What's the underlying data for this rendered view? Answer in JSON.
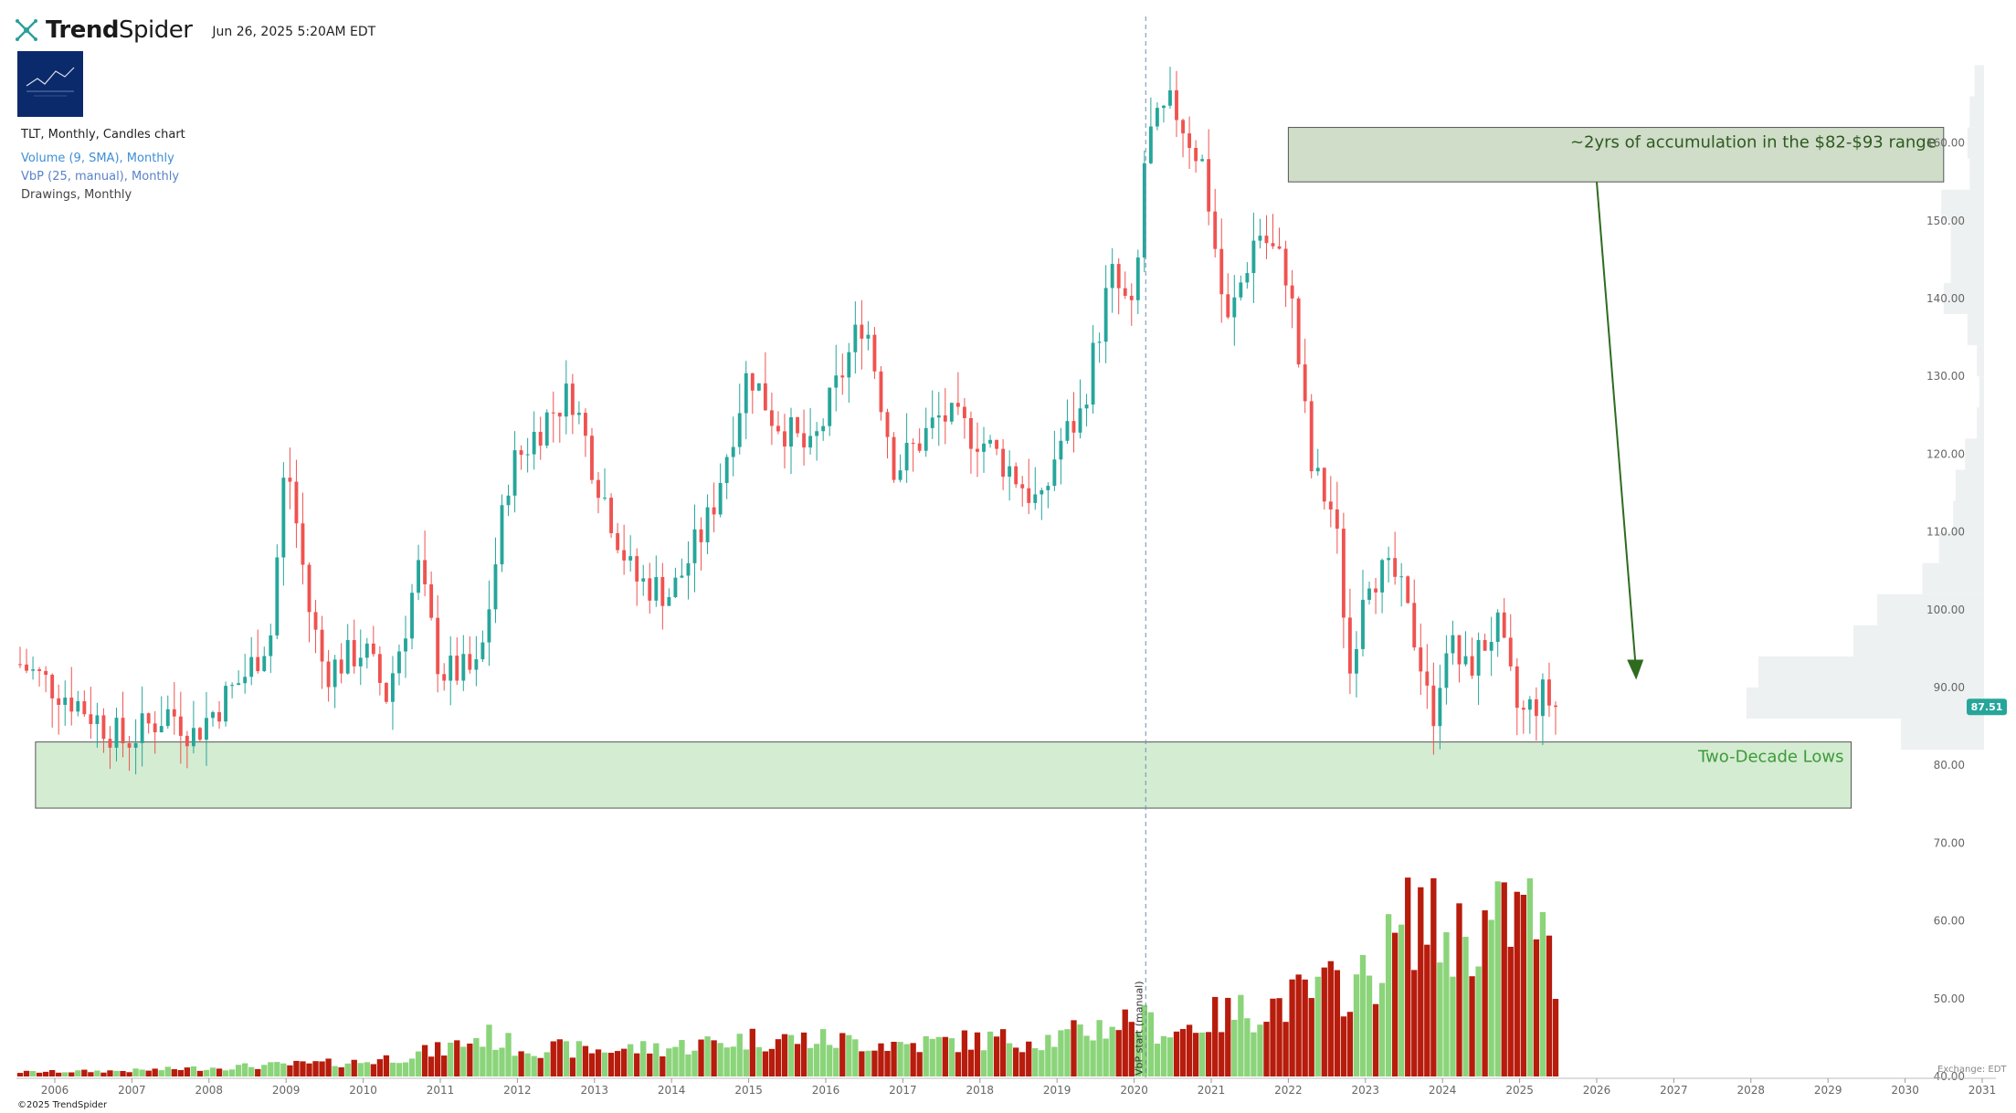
{
  "header": {
    "brand_prefix": "Trend",
    "brand_suffix": "Spider",
    "timestamp": "Jun 26, 2025 5:20AM EDT"
  },
  "legend": {
    "title": "TLT, Monthly, Candles chart",
    "volume": "Volume (9, SMA), Monthly",
    "vbp": "VbP (25, manual), Monthly",
    "drawings": "Drawings, Monthly"
  },
  "footer": {
    "copyright": "©2025 TrendSpider",
    "exchange": "Exchange: EDT"
  },
  "colors": {
    "up": "#26a69a",
    "down": "#ef5350",
    "vol_up": "#8bd47a",
    "vol_down": "#b71c0c",
    "zone_fill": "#d4ecd2",
    "annot_fill": "#cfddc9",
    "vbp_fill": "#eef1f1",
    "arrow": "#2e6b1f",
    "price_tag": "#26a69a"
  },
  "chart_data": {
    "type": "candlestick",
    "title": "TLT, Monthly, Candles chart",
    "ylim": [
      38,
      175
    ],
    "y_ticks": [
      "40.00",
      "50.00",
      "60.00",
      "70.00",
      "80.00",
      "90.00",
      "100.00",
      "110.00",
      "120.00",
      "130.00",
      "140.00",
      "150.00",
      "160.00"
    ],
    "x_ticks": [
      "2006",
      "2007",
      "2008",
      "2009",
      "2010",
      "2011",
      "2012",
      "2013",
      "2014",
      "2015",
      "2016",
      "2017",
      "2018",
      "2019",
      "2020",
      "2021",
      "2022",
      "2023",
      "2024",
      "2025",
      "2026",
      "2027",
      "2028",
      "2029",
      "2030",
      "2031"
    ],
    "last_price": "87.51",
    "price_anchors": [
      [
        "2005.55",
        93
      ],
      [
        "2006.3",
        88
      ],
      [
        "2006.9",
        83
      ],
      [
        "2007.5",
        87
      ],
      [
        "2007.8",
        84
      ],
      [
        "2008.5",
        92
      ],
      [
        "2008.8",
        97
      ],
      [
        "2009.0",
        120
      ],
      [
        "2009.3",
        100
      ],
      [
        "2009.5",
        92
      ],
      [
        "2010.0",
        95
      ],
      [
        "2010.3",
        89
      ],
      [
        "2010.6",
        100
      ],
      [
        "2010.7",
        106
      ],
      [
        "2011.0",
        92
      ],
      [
        "2011.5",
        92
      ],
      [
        "2011.9",
        118
      ],
      [
        "2012.4",
        125
      ],
      [
        "2012.7",
        128
      ],
      [
        "2013.0",
        118
      ],
      [
        "2013.5",
        104
      ],
      [
        "2014.0",
        102
      ],
      [
        "2014.5",
        112
      ],
      [
        "2015.0",
        131
      ],
      [
        "2015.3",
        125
      ],
      [
        "2015.8",
        120
      ],
      [
        "2016.0",
        125
      ],
      [
        "2016.5",
        138
      ],
      [
        "2016.9",
        118
      ],
      [
        "2017.5",
        125
      ],
      [
        "2018.0",
        122
      ],
      [
        "2018.4",
        118
      ],
      [
        "2018.8",
        113
      ],
      [
        "2019.0",
        121
      ],
      [
        "2019.3",
        125
      ],
      [
        "2019.7",
        143
      ],
      [
        "2020.0",
        137
      ],
      [
        "2020.15",
        160
      ],
      [
        "2020.5",
        165
      ],
      [
        "2020.9",
        157
      ],
      [
        "2021.2",
        136
      ],
      [
        "2021.6",
        149
      ],
      [
        "2022.0",
        143
      ],
      [
        "2022.3",
        118
      ],
      [
        "2022.6",
        112
      ],
      [
        "2022.8",
        92
      ],
      [
        "2023.0",
        105
      ],
      [
        "2023.4",
        104
      ],
      [
        "2023.8",
        91
      ],
      [
        "2023.9",
        82
      ],
      [
        "2024.0",
        97
      ],
      [
        "2024.3",
        92
      ],
      [
        "2024.7",
        98
      ],
      [
        "2025.0",
        86
      ],
      [
        "2025.3",
        89
      ],
      [
        "2025.45",
        87.5
      ]
    ],
    "volume_anchors": [
      [
        "2005.55",
        3
      ],
      [
        "2007.0",
        4
      ],
      [
        "2008.0",
        6
      ],
      [
        "2009.0",
        8
      ],
      [
        "2010.0",
        10
      ],
      [
        "2011.0",
        18
      ],
      [
        "2011.6",
        28
      ],
      [
        "2012.0",
        20
      ],
      [
        "2013.0",
        18
      ],
      [
        "2014.0",
        20
      ],
      [
        "2015.0",
        26
      ],
      [
        "2016.0",
        25
      ],
      [
        "2017.0",
        22
      ],
      [
        "2018.0",
        25
      ],
      [
        "2019.0",
        26
      ],
      [
        "2020.0",
        40
      ],
      [
        "2020.5",
        30
      ],
      [
        "2021.0",
        40
      ],
      [
        "2021.9",
        50
      ],
      [
        "2022.5",
        60
      ],
      [
        "2023.0",
        65
      ],
      [
        "2023.7",
        115
      ],
      [
        "2024.0",
        95
      ],
      [
        "2024.5",
        100
      ],
      [
        "2025.2",
        115
      ],
      [
        "2025.45",
        65
      ]
    ],
    "vbp_bins": [
      {
        "lo": 82,
        "hi": 86,
        "vol": 0.35
      },
      {
        "lo": 86,
        "hi": 90,
        "vol": 1.0
      },
      {
        "lo": 90,
        "hi": 94,
        "vol": 0.95
      },
      {
        "lo": 94,
        "hi": 98,
        "vol": 0.55
      },
      {
        "lo": 98,
        "hi": 102,
        "vol": 0.45
      },
      {
        "lo": 102,
        "hi": 106,
        "vol": 0.26
      },
      {
        "lo": 106,
        "hi": 110,
        "vol": 0.19
      },
      {
        "lo": 110,
        "hi": 114,
        "vol": 0.13
      },
      {
        "lo": 114,
        "hi": 118,
        "vol": 0.12
      },
      {
        "lo": 118,
        "hi": 122,
        "vol": 0.08
      },
      {
        "lo": 122,
        "hi": 126,
        "vol": 0.03
      },
      {
        "lo": 126,
        "hi": 130,
        "vol": 0.02
      },
      {
        "lo": 130,
        "hi": 134,
        "vol": 0.03
      },
      {
        "lo": 134,
        "hi": 138,
        "vol": 0.07
      },
      {
        "lo": 138,
        "hi": 142,
        "vol": 0.17
      },
      {
        "lo": 142,
        "hi": 146,
        "vol": 0.14
      },
      {
        "lo": 146,
        "hi": 150,
        "vol": 0.14
      },
      {
        "lo": 150,
        "hi": 154,
        "vol": 0.18
      },
      {
        "lo": 154,
        "hi": 158,
        "vol": 0.06
      },
      {
        "lo": 158,
        "hi": 162,
        "vol": 0.07
      },
      {
        "lo": 162,
        "hi": 166,
        "vol": 0.06
      },
      {
        "lo": 166,
        "hi": 170,
        "vol": 0.04
      }
    ],
    "annotations": {
      "accumulation_label": "~2yrs of accumulation in the $82-$93 range",
      "accumulation_box": {
        "x0": "2022.0",
        "x1": "2030.5",
        "y0": 162,
        "y1": 155
      },
      "accumulation_arrow": {
        "from": [
          "2026.0",
          155
        ],
        "to": [
          "2026.5",
          91
        ]
      },
      "lows_label": "Two-Decade Lows",
      "lows_box": {
        "x0": "2005.75",
        "x1": "2029.3",
        "y0": 83,
        "y1": 74.5
      },
      "vbp_start_label": "VbP start (manual)",
      "vbp_start_x": "2020.15"
    }
  }
}
